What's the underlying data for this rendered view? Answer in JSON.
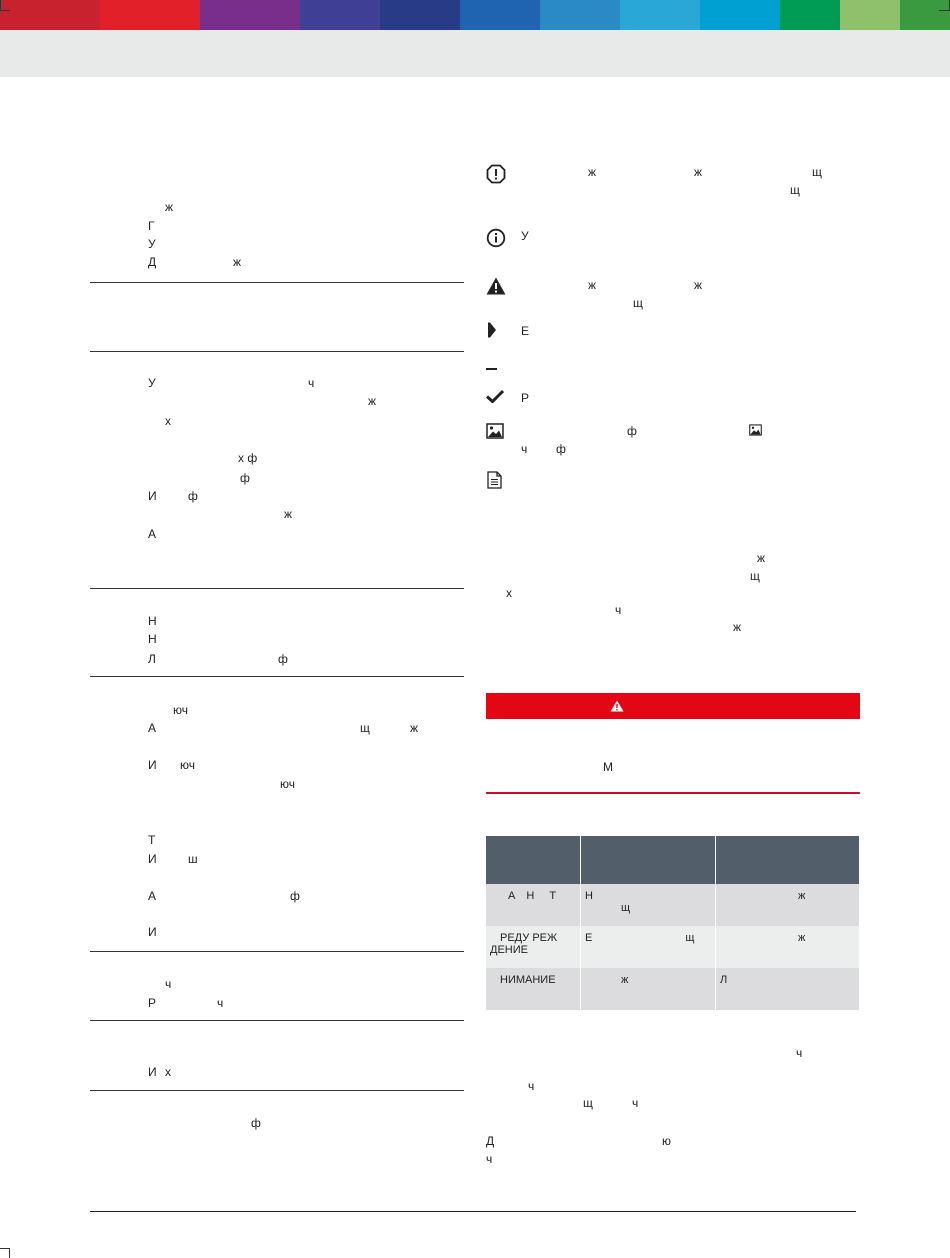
{
  "header": {
    "stripe_colors": [
      "#c9222f",
      "#e2202a",
      "#7a2e8c",
      "#3f3f95",
      "#273b87",
      "#1e64b0",
      "#2a8ac6",
      "#29a7d6",
      "#00a0d2",
      "#009b55",
      "#8fc16c",
      "#3a9a3f"
    ]
  },
  "left": {
    "s1": [
      "ж",
      "Г",
      "У",
      "Д",
      "ж"
    ],
    "s2": [
      "У",
      "ч",
      "ж",
      "х",
      "х  ф",
      "ф",
      "И",
      "ф",
      "ж",
      "А"
    ],
    "s3": [
      "Н",
      "Н",
      "Л",
      "ф"
    ],
    "s4": [
      "юч",
      "А",
      "щ",
      "ж",
      "И",
      "юч",
      "юч",
      "Т",
      "И",
      "ш",
      "А",
      "ф",
      "И"
    ],
    "s5": [
      "ч",
      "Р",
      "ч"
    ],
    "s6": [
      "И",
      "х"
    ],
    "s7": [
      "ф"
    ]
  },
  "right": {
    "legend": [
      {
        "icon": "exclamation-circle-icon",
        "texts": [
          "ж",
          "ж",
          "щ",
          "щ"
        ]
      },
      {
        "icon": "info-circle-icon",
        "texts": [
          "У"
        ]
      },
      {
        "icon": "warning-triangle-icon",
        "texts": [
          "ж",
          "ж",
          "щ"
        ]
      },
      {
        "icon": "play-arrow-icon",
        "texts": [
          "Е"
        ]
      },
      {
        "icon": "dash-icon",
        "texts": []
      },
      {
        "icon": "checkmark-icon",
        "texts": [
          "Р"
        ]
      },
      {
        "icon": "image-icon",
        "texts": [
          "ф",
          "ч",
          "ф"
        ]
      },
      {
        "icon": "document-icon",
        "texts": []
      }
    ],
    "para1": [
      "ж",
      "щ",
      "х",
      "ч",
      "ж"
    ],
    "warning_bar_icon": "warning-triangle-icon",
    "warn_text": "М",
    "table": {
      "rows": [
        {
          "c1": [
            "А",
            "Н",
            "Т"
          ],
          "c2": [
            "Н",
            "щ"
          ],
          "c3": [
            "ж"
          ]
        },
        {
          "c1": [
            "РЕДУ",
            "РЕЖ",
            "ДЕНИЕ"
          ],
          "c2": [
            "Е",
            "щ"
          ],
          "c3": [
            "ж"
          ]
        },
        {
          "c1": [
            "НИМАНИЕ"
          ],
          "c2": [
            "ж"
          ],
          "c3": [
            "Л"
          ]
        }
      ]
    },
    "para2": [
      "ч",
      "ч",
      "щ",
      "ч"
    ],
    "para3": [
      "Д",
      "ю",
      "ч"
    ]
  }
}
